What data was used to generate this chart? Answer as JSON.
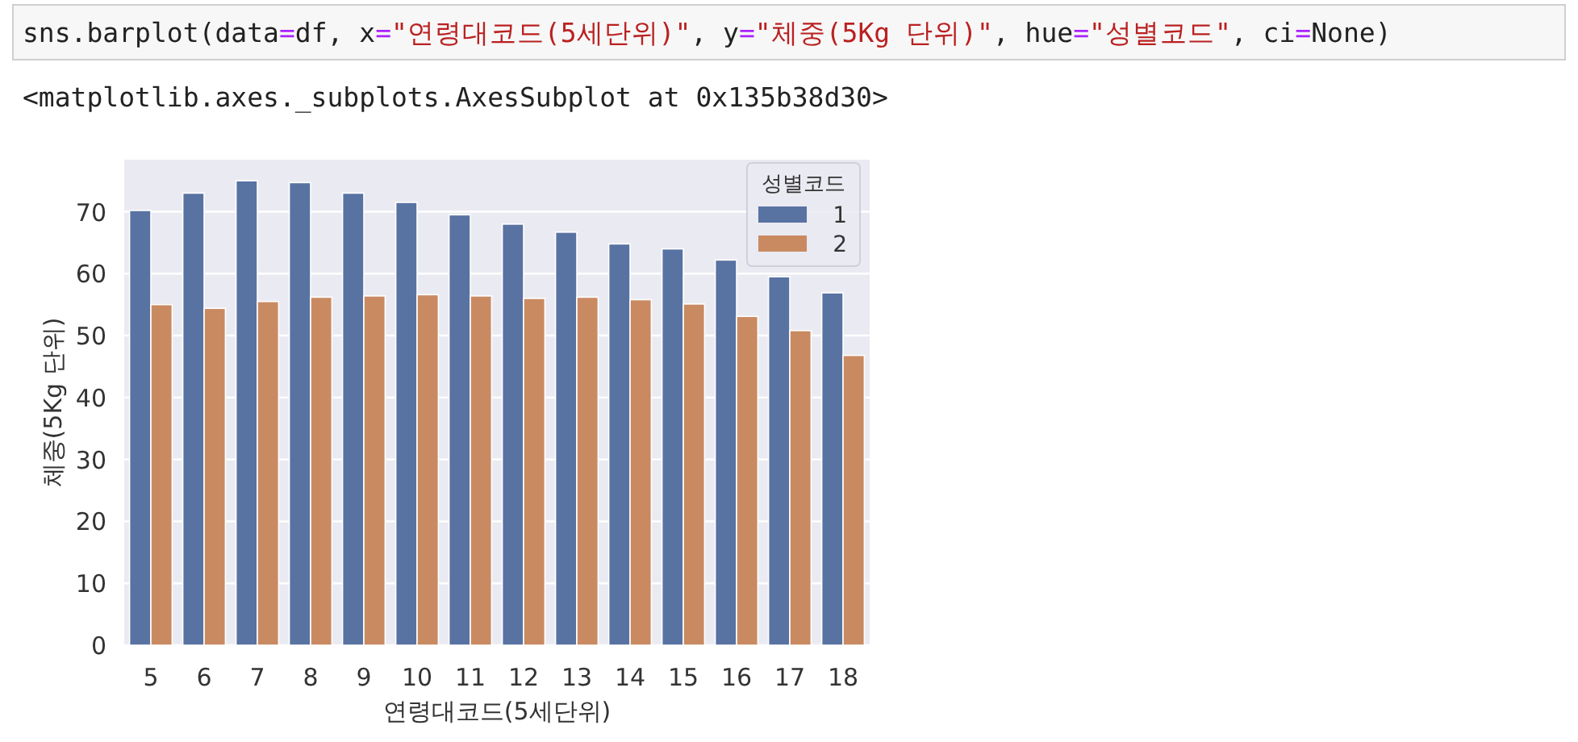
{
  "chart_data": {
    "type": "bar",
    "annotations": [
      "sns.barplot(data=df, x=\"연령대코드(5세단위)\", y=\"체중(5Kg 단위)\", hue=\"성별코드\", ci=None)",
      "<matplotlib.axes._subplots.AxesSubplot at 0x135b38d30>"
    ],
    "xlabel": "연령대코드(5세단위)",
    "ylabel": "체중(5Kg 단위)",
    "legend_title": "성별코드",
    "categories": [
      "5",
      "6",
      "7",
      "8",
      "9",
      "10",
      "11",
      "12",
      "13",
      "14",
      "15",
      "16",
      "17",
      "18"
    ],
    "series": [
      {
        "name": "1",
        "color": "#5872a2",
        "values": [
          70.2,
          73.0,
          75.0,
          74.7,
          73.0,
          71.5,
          69.5,
          68.0,
          66.7,
          64.8,
          64.0,
          62.2,
          59.5,
          56.9
        ]
      },
      {
        "name": "2",
        "color": "#c98a62",
        "values": [
          55.0,
          54.4,
          55.5,
          56.2,
          56.4,
          56.6,
          56.4,
          56.0,
          56.2,
          55.8,
          55.1,
          53.1,
          50.8,
          46.8
        ]
      }
    ],
    "ylim": [
      0,
      78.4
    ],
    "yticks": [
      0,
      10,
      20,
      30,
      40,
      50,
      60,
      70
    ],
    "grid": "y",
    "legend": "top right"
  }
}
